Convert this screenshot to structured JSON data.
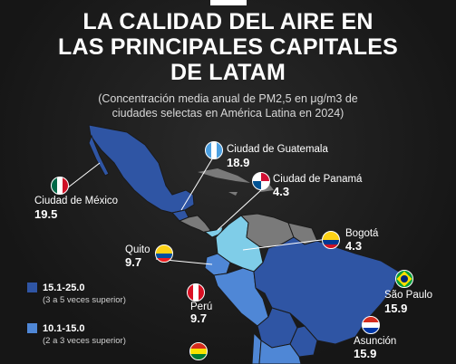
{
  "title_lines": [
    "LA CALIDAD DEL AIRE EN",
    "LAS PRINCIPALES CAPITALES",
    "DE LATAM"
  ],
  "subtitle_lines": [
    "(Concentración media anual de PM2,5 en μg/m3 de",
    "ciudades selectas en América Latina en 2024)"
  ],
  "colors": {
    "background": "#1b1b1b",
    "range_15_25": "#2f55a4",
    "range_10_15": "#4f87d6",
    "range_5_10": "#7fcde8",
    "no_data": "#7a7a7a"
  },
  "cities": [
    {
      "name": "Ciudad de Guatemala",
      "value": "18.9",
      "flag": "guatemala-flag-icon"
    },
    {
      "name": "Ciudad de Panamá",
      "value": "4.3",
      "flag": "panama-flag-icon"
    },
    {
      "name": "Ciudad de México",
      "value": "19.5",
      "flag": "mexico-flag-icon"
    },
    {
      "name": "Bogotá",
      "value": "4.3",
      "flag": "colombia-flag-icon"
    },
    {
      "name": "Quito",
      "value": "9.7",
      "flag": "ecuador-flag-icon"
    },
    {
      "name": "São Paulo",
      "value": "15.9",
      "flag": "brazil-flag-icon"
    },
    {
      "name": "Perú",
      "value": "9.7",
      "flag": "peru-flag-icon"
    },
    {
      "name": "Asunción",
      "value": "15.9",
      "flag": "paraguay-flag-icon"
    }
  ],
  "legend": [
    {
      "range": "15.1-25.0",
      "note": "(3 a 5 veces superior)"
    },
    {
      "range": "10.1-15.0",
      "note": "(2 a 3 veces superior)"
    }
  ]
}
